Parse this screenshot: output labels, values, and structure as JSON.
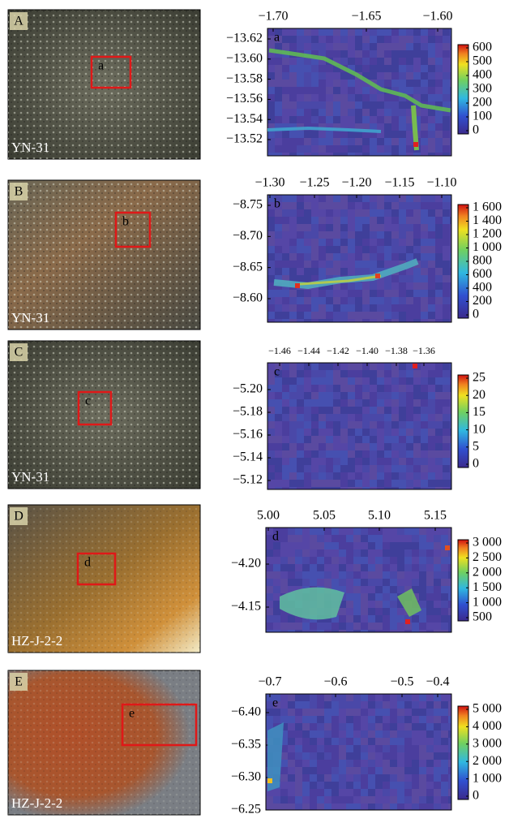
{
  "panels": [
    {
      "photo": {
        "letter": "A",
        "sample": "YN-31",
        "box": "a"
      },
      "map": {
        "letter": "a",
        "xticks": [
          "−1.70",
          "−1.65",
          "−1.60"
        ],
        "yticks": [
          "−13.62",
          "−13.60",
          "−13.58",
          "−13.56",
          "−13.54",
          "−13.52"
        ],
        "colorbar": [
          "600",
          "500",
          "400",
          "300",
          "200",
          "100",
          "0"
        ]
      }
    },
    {
      "photo": {
        "letter": "B",
        "sample": "YN-31",
        "box": "b"
      },
      "map": {
        "letter": "b",
        "xticks": [
          "−1.30",
          "−1.25",
          "−1.20",
          "−1.15",
          "−1.10"
        ],
        "yticks": [
          "−8.75",
          "−8.70",
          "−8.65",
          "−8.60"
        ],
        "colorbar": [
          "1 600",
          "1 400",
          "1 200",
          "1 000",
          "800",
          "600",
          "400",
          "200",
          "0"
        ]
      }
    },
    {
      "photo": {
        "letter": "C",
        "sample": "YN-31",
        "box": "c"
      },
      "map": {
        "letter": "c",
        "xticks": [
          "−1.46",
          "−1.44",
          "−1.42",
          "−1.40",
          "−1.38",
          "−1.36"
        ],
        "yticks": [
          "−5.20",
          "−5.18",
          "−5.16",
          "−5.14",
          "−5.12"
        ],
        "colorbar": [
          "25",
          "20",
          "15",
          "10",
          "5",
          "0"
        ]
      }
    },
    {
      "photo": {
        "letter": "D",
        "sample": "HZ-J-2-2",
        "box": "d"
      },
      "map": {
        "letter": "d",
        "xticks": [
          "5.00",
          "5.05",
          "5.10",
          "5.15"
        ],
        "yticks": [
          "−4.20",
          "−4.15"
        ],
        "colorbar": [
          "3 000",
          "2 500",
          "2 000",
          "1 500",
          "1 000",
          "500"
        ]
      }
    },
    {
      "photo": {
        "letter": "E",
        "sample": "HZ-J-2-2",
        "box": "e"
      },
      "map": {
        "letter": "e",
        "xticks": [
          "−0.7",
          "−0.6",
          "−0.5",
          "−0.4"
        ],
        "yticks": [
          "−6.40",
          "−6.35",
          "−6.30",
          "−6.25"
        ],
        "colorbar": [
          "5 000",
          "4 000",
          "3 000",
          "2 000",
          "1 000",
          "0"
        ]
      }
    }
  ]
}
